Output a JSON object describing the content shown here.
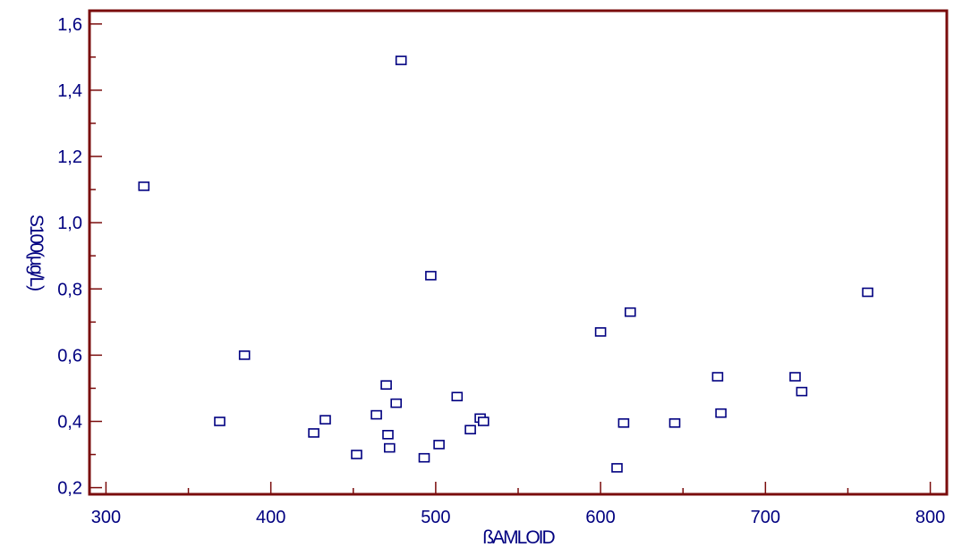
{
  "chart_data": {
    "type": "scatter",
    "title": "",
    "xlabel": "ßAMLOID",
    "ylabel": "S100(µg/L)",
    "xlim": [
      290,
      810
    ],
    "ylim": [
      0.18,
      1.64
    ],
    "x_ticks": [
      300,
      400,
      500,
      600,
      700,
      800
    ],
    "x_tick_labels": [
      "300",
      "400",
      "500",
      "600",
      "700",
      "800"
    ],
    "x_minor_ticks": [
      350,
      450,
      550,
      650,
      750
    ],
    "y_ticks": [
      0.2,
      0.4,
      0.6,
      0.8,
      1.0,
      1.2,
      1.4,
      1.6
    ],
    "y_tick_labels": [
      "0,2",
      "0,4",
      "0,6",
      "0,8",
      "1,0",
      "1,2",
      "1,4",
      "1,6"
    ],
    "y_minor_ticks": [
      0.3,
      0.5,
      0.7,
      0.9,
      1.1,
      1.3,
      1.5
    ],
    "grid": false,
    "colors": {
      "points": "#000080",
      "frame": "#7a0c0c",
      "text": "#000080"
    },
    "series": [
      {
        "x": [
          323,
          369,
          384,
          426,
          433,
          452,
          464,
          470,
          471,
          472,
          476,
          479,
          493,
          497,
          502,
          513,
          521,
          527,
          529,
          600,
          610,
          614,
          618,
          645,
          671,
          673,
          718,
          722,
          762
        ],
        "y": [
          1.11,
          0.4,
          0.6,
          0.365,
          0.405,
          0.3,
          0.42,
          0.51,
          0.36,
          0.32,
          0.455,
          1.49,
          0.29,
          0.84,
          0.33,
          0.475,
          0.375,
          0.41,
          0.4,
          0.67,
          0.26,
          0.395,
          0.73,
          0.395,
          0.535,
          0.425,
          0.535,
          0.49,
          0.79
        ]
      }
    ]
  }
}
